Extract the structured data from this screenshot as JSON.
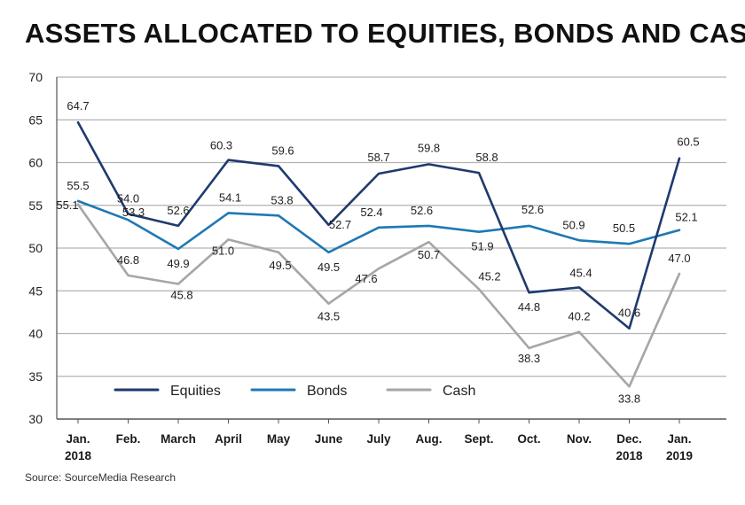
{
  "chart_data": {
    "type": "line",
    "title": "ASSETS ALLOCATED TO EQUITIES, BONDS AND CASH",
    "source": "Source: SourceMedia Research",
    "categories": [
      [
        "Jan.",
        "2018"
      ],
      [
        "Feb."
      ],
      [
        "March"
      ],
      [
        "April"
      ],
      [
        "May"
      ],
      [
        "June"
      ],
      [
        "July"
      ],
      [
        "Aug."
      ],
      [
        "Sept."
      ],
      [
        "Oct."
      ],
      [
        "Nov."
      ],
      [
        "Dec.",
        "2018"
      ],
      [
        "Jan.",
        "2019"
      ]
    ],
    "ylim": [
      30,
      70
    ],
    "yticks": [
      30,
      35,
      40,
      45,
      50,
      55,
      60,
      65,
      70
    ],
    "grid": "horizontal",
    "legend_placement": "bottom",
    "series": [
      {
        "name": "Equities",
        "color": "#1f3a6e",
        "values": [
          64.7,
          54.0,
          52.6,
          60.3,
          59.6,
          52.7,
          58.7,
          59.8,
          58.8,
          44.8,
          45.4,
          40.6,
          60.5
        ],
        "labels": [
          "64.7",
          "54.0",
          "52.6",
          "60.3",
          "59.6",
          "52.7",
          "58.7",
          "59.8",
          "58.8",
          "44.8",
          "45.4",
          "40.6",
          "60.5"
        ]
      },
      {
        "name": "Bonds",
        "color": "#1f78b4",
        "values": [
          55.5,
          53.3,
          49.9,
          54.1,
          53.8,
          49.5,
          52.4,
          52.6,
          51.9,
          52.6,
          50.9,
          50.5,
          52.1
        ],
        "labels": [
          "55.5",
          "53.3",
          "49.9",
          "54.1",
          "53.8",
          "49.5",
          "52.4",
          "52.6",
          "51.9",
          "52.6",
          "50.9",
          "50.5",
          "52.1"
        ]
      },
      {
        "name": "Cash",
        "color": "#a6a6a6",
        "values": [
          55.1,
          46.8,
          45.8,
          51.0,
          49.5,
          43.5,
          47.6,
          50.7,
          45.2,
          38.3,
          40.2,
          33.8,
          47.0
        ],
        "labels": [
          "55.1",
          "46.8",
          "45.8",
          "51.0",
          "49.5",
          "43.5",
          "47.6",
          "50.7",
          "45.2",
          "38.3",
          "40.2",
          "33.8",
          "47.0"
        ]
      }
    ]
  }
}
